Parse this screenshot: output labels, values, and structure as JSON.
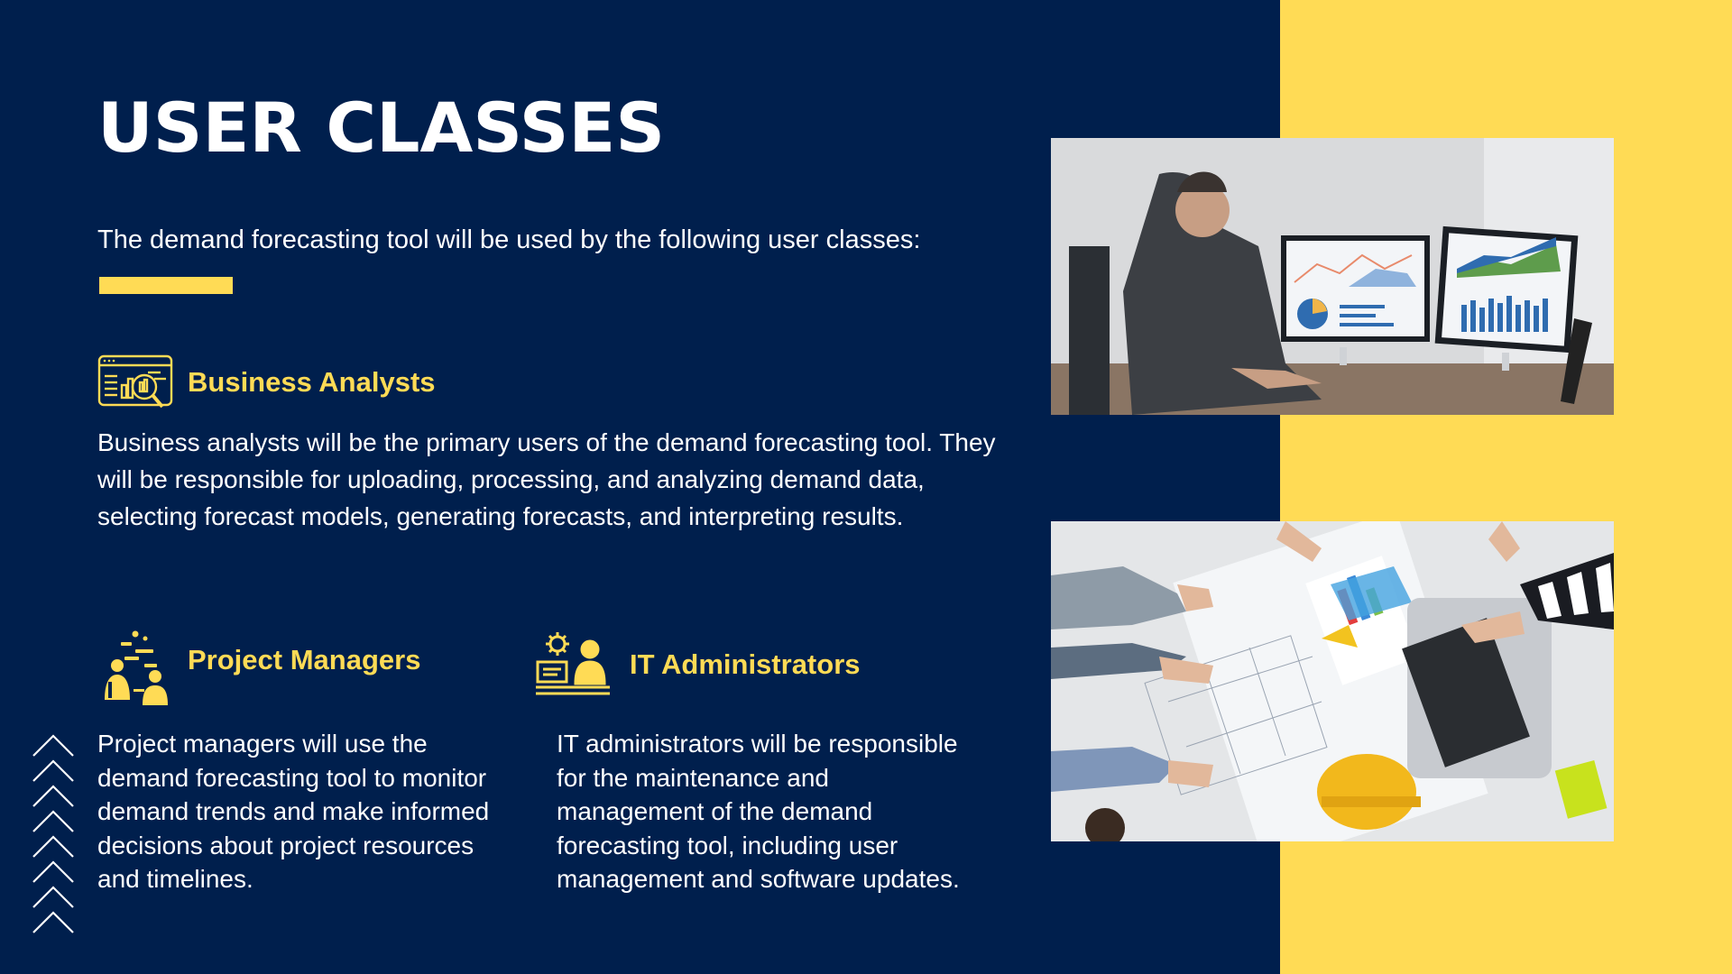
{
  "slide": {
    "title": "USER CLASSES",
    "intro": "The demand forecasting tool will be used by the following user classes:",
    "colors": {
      "background": "#001f4d",
      "accent": "#ffdb55",
      "text": "#ffffff"
    }
  },
  "sections": {
    "business_analysts": {
      "heading": "Business Analysts",
      "icon": "data-analysis-icon",
      "body": "Business analysts will be the primary users of the demand forecasting tool. They will be responsible for uploading, processing, and analyzing demand data, selecting forecast models, generating forecasts, and interpreting results."
    },
    "project_managers": {
      "heading": "Project Managers",
      "icon": "team-meeting-icon",
      "body": "Project managers will use the demand forecasting tool to monitor demand trends and make informed decisions about project resources and timelines."
    },
    "it_administrators": {
      "heading": "IT Administrators",
      "icon": "it-admin-icon",
      "body": "IT administrators will be responsible for the maintenance and management of the demand forecasting tool, including user management and software updates."
    }
  },
  "images": {
    "top": {
      "name": "analyst-at-monitors-photo"
    },
    "bottom": {
      "name": "team-reviewing-blueprints-photo"
    }
  },
  "decor": {
    "chevrons": "up-chevrons-icon"
  }
}
